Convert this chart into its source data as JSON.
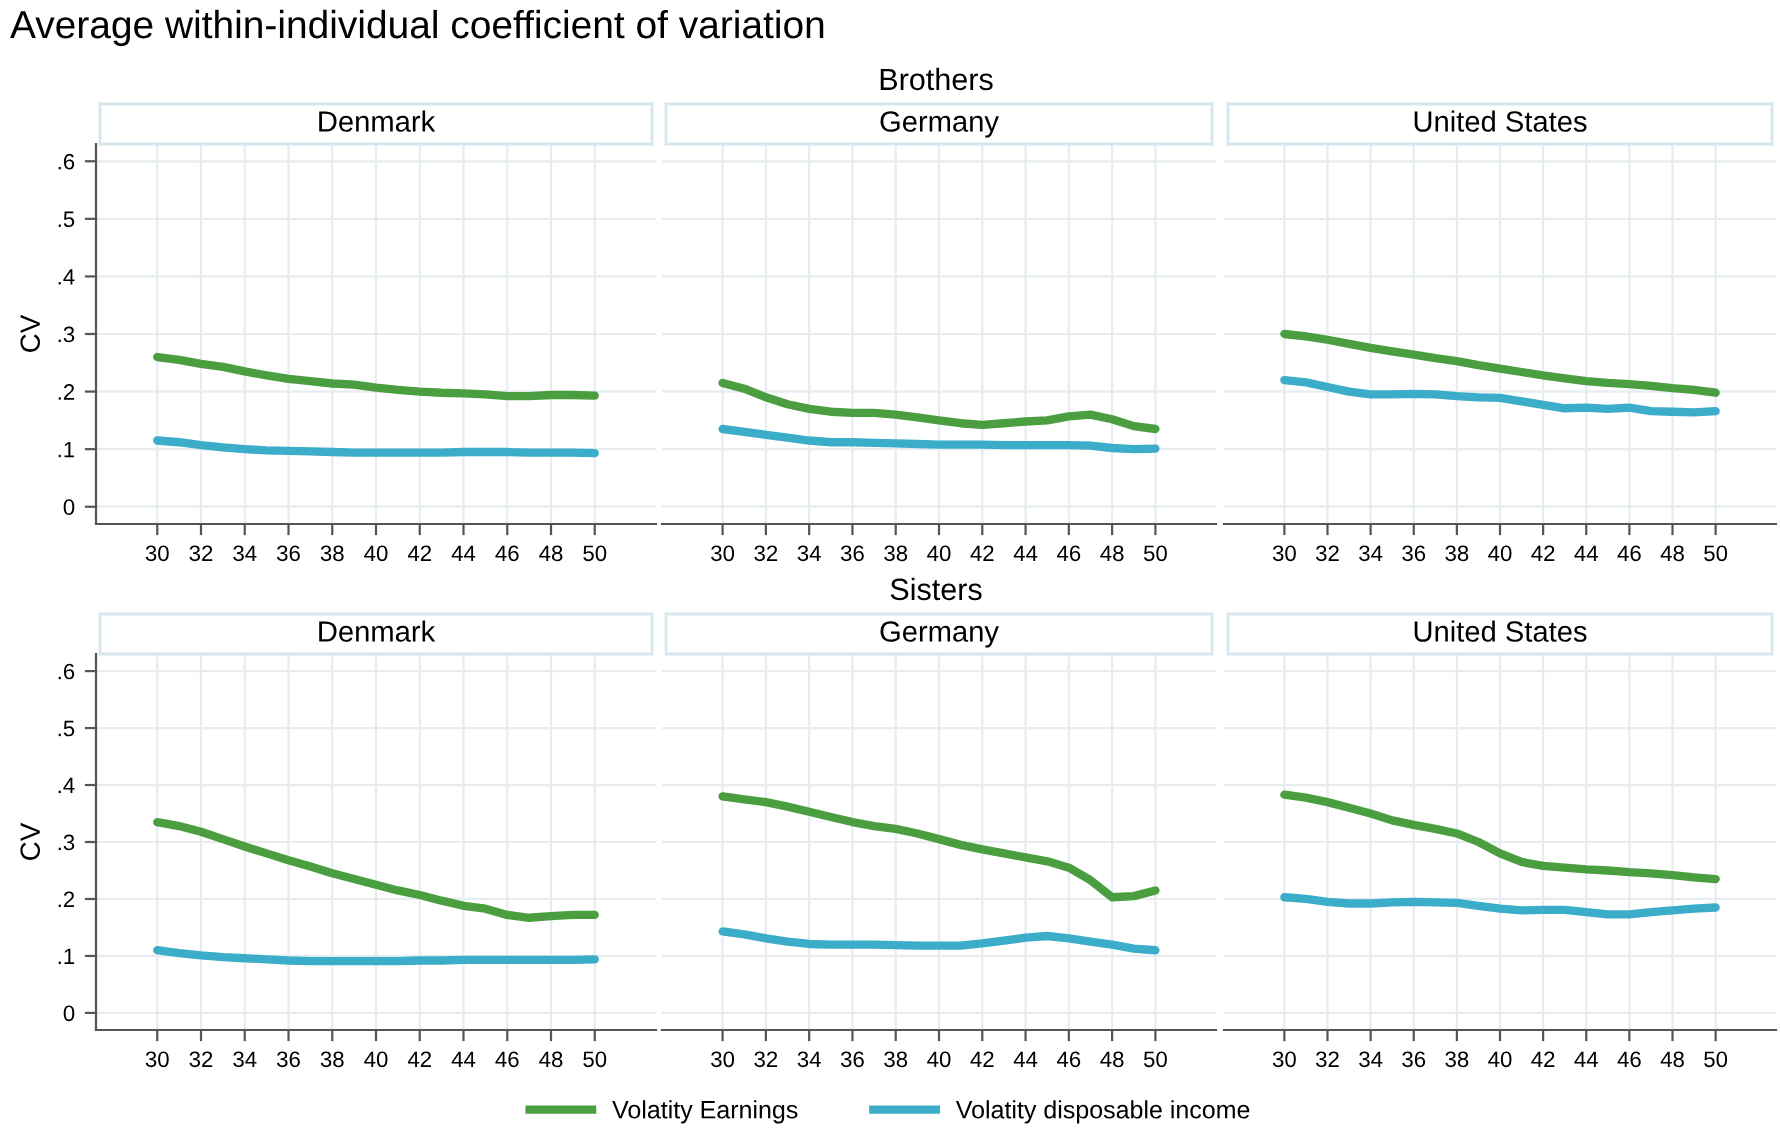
{
  "chart_data": [
    {
      "type": "line",
      "title": "Denmark",
      "annotations": [
        "Average within-individual coefficient of variation",
        "Brothers"
      ],
      "ylabel": "CV",
      "x": [
        30,
        31,
        32,
        33,
        34,
        35,
        36,
        37,
        38,
        39,
        40,
        41,
        42,
        43,
        44,
        45,
        46,
        47,
        48,
        49,
        50
      ],
      "xlim": [
        27.2,
        52.8
      ],
      "xticks": [
        30,
        32,
        34,
        36,
        38,
        40,
        42,
        44,
        46,
        48,
        50
      ],
      "ylim": [
        -0.03,
        0.63
      ],
      "yticks": [
        {
          "value": 0,
          "label": "0"
        },
        {
          "value": 0.1,
          "label": ".1"
        },
        {
          "value": 0.2,
          "label": ".2"
        },
        {
          "value": 0.3,
          "label": ".3"
        },
        {
          "value": 0.4,
          "label": ".4"
        },
        {
          "value": 0.5,
          "label": ".5"
        },
        {
          "value": 0.6,
          "label": ".6"
        }
      ],
      "grid": true,
      "legend": "bottom",
      "series": [
        {
          "name": "Volatity Earnings",
          "color": "#4a9e3f",
          "values": [
            0.26,
            0.255,
            0.248,
            0.243,
            0.235,
            0.228,
            0.222,
            0.218,
            0.214,
            0.212,
            0.207,
            0.203,
            0.2,
            0.198,
            0.197,
            0.195,
            0.192,
            0.192,
            0.194,
            0.194,
            0.193
          ]
        },
        {
          "name": "Volatity disposable income",
          "color": "#3badc9",
          "values": [
            0.115,
            0.112,
            0.107,
            0.103,
            0.1,
            0.098,
            0.097,
            0.096,
            0.095,
            0.094,
            0.094,
            0.094,
            0.094,
            0.094,
            0.095,
            0.095,
            0.095,
            0.094,
            0.094,
            0.094,
            0.093
          ]
        }
      ]
    },
    {
      "type": "line",
      "title": "Germany",
      "x": [
        30,
        31,
        32,
        33,
        34,
        35,
        36,
        37,
        38,
        39,
        40,
        41,
        42,
        43,
        44,
        45,
        46,
        47,
        48,
        49,
        50
      ],
      "xlim": [
        27.2,
        52.8
      ],
      "xticks": [
        30,
        32,
        34,
        36,
        38,
        40,
        42,
        44,
        46,
        48,
        50
      ],
      "ylim": [
        -0.03,
        0.63
      ],
      "yticks": [
        {
          "value": 0,
          "label": null
        },
        {
          "value": 0.1,
          "label": null
        },
        {
          "value": 0.2,
          "label": null
        },
        {
          "value": 0.3,
          "label": null
        },
        {
          "value": 0.4,
          "label": null
        },
        {
          "value": 0.5,
          "label": null
        },
        {
          "value": 0.6,
          "label": null
        }
      ],
      "grid": true,
      "tick_labels": "x",
      "series": [
        {
          "color": "#4a9e3f",
          "values": [
            0.215,
            0.205,
            0.19,
            0.178,
            0.17,
            0.165,
            0.163,
            0.163,
            0.16,
            0.155,
            0.15,
            0.145,
            0.142,
            0.145,
            0.148,
            0.15,
            0.157,
            0.16,
            0.152,
            0.14,
            0.135
          ]
        },
        {
          "color": "#3badc9",
          "values": [
            0.135,
            0.13,
            0.125,
            0.12,
            0.115,
            0.112,
            0.112,
            0.111,
            0.11,
            0.109,
            0.108,
            0.108,
            0.108,
            0.107,
            0.107,
            0.107,
            0.107,
            0.106,
            0.102,
            0.1,
            0.101
          ]
        }
      ]
    },
    {
      "type": "line",
      "title": "United States",
      "x": [
        30,
        31,
        32,
        33,
        34,
        35,
        36,
        37,
        38,
        39,
        40,
        41,
        42,
        43,
        44,
        45,
        46,
        47,
        48,
        49,
        50
      ],
      "xlim": [
        27.2,
        52.8
      ],
      "xticks": [
        30,
        32,
        34,
        36,
        38,
        40,
        42,
        44,
        46,
        48,
        50
      ],
      "ylim": [
        -0.03,
        0.63
      ],
      "yticks": [
        {
          "value": 0,
          "label": null
        },
        {
          "value": 0.1,
          "label": null
        },
        {
          "value": 0.2,
          "label": null
        },
        {
          "value": 0.3,
          "label": null
        },
        {
          "value": 0.4,
          "label": null
        },
        {
          "value": 0.5,
          "label": null
        },
        {
          "value": 0.6,
          "label": null
        }
      ],
      "grid": true,
      "tick_labels": "x",
      "series": [
        {
          "color": "#4a9e3f",
          "values": [
            0.3,
            0.296,
            0.29,
            0.283,
            0.276,
            0.27,
            0.264,
            0.258,
            0.253,
            0.246,
            0.24,
            0.234,
            0.228,
            0.223,
            0.218,
            0.215,
            0.213,
            0.21,
            0.206,
            0.203,
            0.198
          ]
        },
        {
          "color": "#3badc9",
          "values": [
            0.22,
            0.216,
            0.208,
            0.2,
            0.195,
            0.195,
            0.196,
            0.195,
            0.192,
            0.19,
            0.189,
            0.183,
            0.177,
            0.171,
            0.172,
            0.17,
            0.172,
            0.166,
            0.165,
            0.164,
            0.166
          ]
        }
      ]
    },
    {
      "type": "line",
      "title": "Denmark",
      "annotations": [
        "Sisters"
      ],
      "ylabel": "CV",
      "x": [
        30,
        31,
        32,
        33,
        34,
        35,
        36,
        37,
        38,
        39,
        40,
        41,
        42,
        43,
        44,
        45,
        46,
        47,
        48,
        49,
        50
      ],
      "xlim": [
        27.2,
        52.8
      ],
      "xticks": [
        30,
        32,
        34,
        36,
        38,
        40,
        42,
        44,
        46,
        48,
        50
      ],
      "ylim": [
        -0.03,
        0.63
      ],
      "yticks": [
        {
          "value": 0,
          "label": "0"
        },
        {
          "value": 0.1,
          "label": ".1"
        },
        {
          "value": 0.2,
          "label": ".2"
        },
        {
          "value": 0.3,
          "label": ".3"
        },
        {
          "value": 0.4,
          "label": ".4"
        },
        {
          "value": 0.5,
          "label": ".5"
        },
        {
          "value": 0.6,
          "label": ".6"
        }
      ],
      "grid": true,
      "series": [
        {
          "color": "#4a9e3f",
          "values": [
            0.335,
            0.328,
            0.318,
            0.305,
            0.292,
            0.28,
            0.268,
            0.257,
            0.245,
            0.235,
            0.225,
            0.215,
            0.207,
            0.197,
            0.188,
            0.183,
            0.172,
            0.167,
            0.17,
            0.172,
            0.172
          ]
        },
        {
          "color": "#3badc9",
          "values": [
            0.11,
            0.105,
            0.101,
            0.098,
            0.096,
            0.094,
            0.092,
            0.091,
            0.091,
            0.091,
            0.091,
            0.091,
            0.092,
            0.092,
            0.093,
            0.093,
            0.093,
            0.093,
            0.093,
            0.093,
            0.094
          ]
        }
      ]
    },
    {
      "type": "line",
      "title": "Germany",
      "x": [
        30,
        31,
        32,
        33,
        34,
        35,
        36,
        37,
        38,
        39,
        40,
        41,
        42,
        43,
        44,
        45,
        46,
        47,
        48,
        49,
        50
      ],
      "xlim": [
        27.2,
        52.8
      ],
      "xticks": [
        30,
        32,
        34,
        36,
        38,
        40,
        42,
        44,
        46,
        48,
        50
      ],
      "ylim": [
        -0.03,
        0.63
      ],
      "yticks": [
        {
          "value": 0,
          "label": null
        },
        {
          "value": 0.1,
          "label": null
        },
        {
          "value": 0.2,
          "label": null
        },
        {
          "value": 0.3,
          "label": null
        },
        {
          "value": 0.4,
          "label": null
        },
        {
          "value": 0.5,
          "label": null
        },
        {
          "value": 0.6,
          "label": null
        }
      ],
      "grid": true,
      "tick_labels": "x",
      "series": [
        {
          "color": "#4a9e3f",
          "values": [
            0.38,
            0.375,
            0.37,
            0.362,
            0.353,
            0.344,
            0.335,
            0.328,
            0.323,
            0.315,
            0.305,
            0.295,
            0.287,
            0.28,
            0.273,
            0.266,
            0.255,
            0.233,
            0.203,
            0.205,
            0.215
          ]
        },
        {
          "color": "#3badc9",
          "values": [
            0.143,
            0.138,
            0.131,
            0.125,
            0.121,
            0.12,
            0.12,
            0.12,
            0.119,
            0.118,
            0.118,
            0.118,
            0.122,
            0.127,
            0.132,
            0.135,
            0.131,
            0.125,
            0.12,
            0.113,
            0.11
          ]
        }
      ]
    },
    {
      "type": "line",
      "title": "United States",
      "x": [
        30,
        31,
        32,
        33,
        34,
        35,
        36,
        37,
        38,
        39,
        40,
        41,
        42,
        43,
        44,
        45,
        46,
        47,
        48,
        49,
        50
      ],
      "xlim": [
        27.2,
        52.8
      ],
      "xticks": [
        30,
        32,
        34,
        36,
        38,
        40,
        42,
        44,
        46,
        48,
        50
      ],
      "ylim": [
        -0.03,
        0.63
      ],
      "yticks": [
        {
          "value": 0,
          "label": null
        },
        {
          "value": 0.1,
          "label": null
        },
        {
          "value": 0.2,
          "label": null
        },
        {
          "value": 0.3,
          "label": null
        },
        {
          "value": 0.4,
          "label": null
        },
        {
          "value": 0.5,
          "label": null
        },
        {
          "value": 0.6,
          "label": null
        }
      ],
      "grid": true,
      "tick_labels": "x",
      "series": [
        {
          "color": "#4a9e3f",
          "values": [
            0.383,
            0.378,
            0.37,
            0.36,
            0.35,
            0.338,
            0.33,
            0.323,
            0.315,
            0.3,
            0.28,
            0.265,
            0.258,
            0.255,
            0.252,
            0.25,
            0.247,
            0.245,
            0.242,
            0.238,
            0.235
          ]
        },
        {
          "color": "#3badc9",
          "values": [
            0.203,
            0.2,
            0.195,
            0.192,
            0.192,
            0.194,
            0.195,
            0.194,
            0.193,
            0.188,
            0.183,
            0.18,
            0.181,
            0.181,
            0.177,
            0.173,
            0.173,
            0.177,
            0.18,
            0.183,
            0.185
          ]
        }
      ]
    }
  ]
}
